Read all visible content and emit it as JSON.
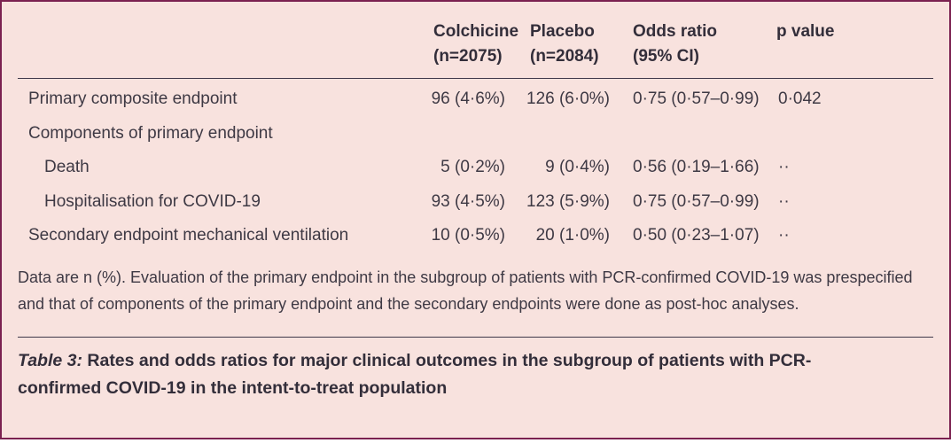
{
  "colors": {
    "background": "#f8e2de",
    "border": "#7b2150",
    "text": "#3e3944",
    "rule": "#40394a"
  },
  "table": {
    "columns": {
      "label": "",
      "colchicine": "Colchicine\n(n=2075)",
      "placebo": "Placebo\n(n=2084)",
      "odds_ratio": "Odds ratio\n(95% CI)",
      "p_value": "p value"
    },
    "rows": [
      {
        "label": "Primary composite endpoint",
        "indent": 0,
        "colchicine": "96 (4·6%)",
        "placebo": "126 (6·0%)",
        "odds_ratio": "0·75 (0·57–0·99)",
        "p_value": "0·042"
      },
      {
        "label": "Components of primary endpoint",
        "indent": 0,
        "colchicine": "",
        "placebo": "",
        "odds_ratio": "",
        "p_value": ""
      },
      {
        "label": "Death",
        "indent": 1,
        "colchicine": "5 (0·2%)",
        "placebo": "9 (0·4%)",
        "odds_ratio": "0·56 (0·19–1·66)",
        "p_value": "··"
      },
      {
        "label": "Hospitalisation for COVID-19",
        "indent": 1,
        "colchicine": "93 (4·5%)",
        "placebo": "123 (5·9%)",
        "odds_ratio": "0·75 (0·57–0·99)",
        "p_value": "··"
      },
      {
        "label": "Secondary endpoint mechanical ventilation",
        "indent": 0,
        "colchicine": "10 (0·5%)",
        "placebo": "20 (1·0%)",
        "odds_ratio": "0·50 (0·23–1·07)",
        "p_value": "··"
      }
    ]
  },
  "footnote": "Data are n (%). Evaluation of the primary endpoint in the subgroup of patients with PCR-confirmed COVID-19 was prespecified and that of components of the primary endpoint and the secondary endpoints were done as post-hoc analyses.",
  "caption": {
    "label": "Table 3:",
    "text": " Rates and odds ratios for major clinical outcomes in the subgroup of patients with PCR-confirmed COVID-19 in the intent-to-treat population"
  }
}
